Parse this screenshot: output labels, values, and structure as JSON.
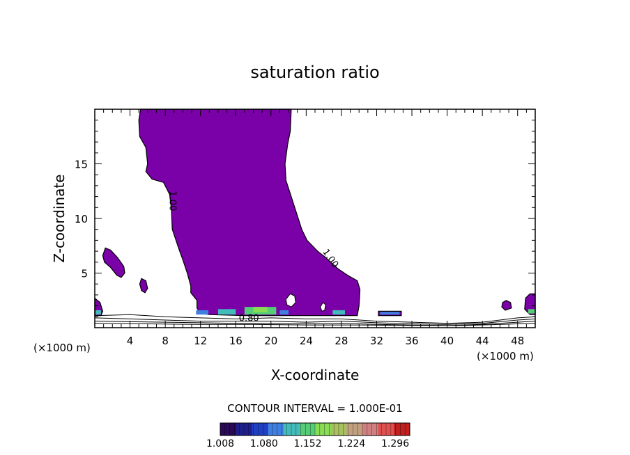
{
  "chart_data": {
    "type": "heatmap",
    "title": "saturation ratio",
    "xlabel": "X-coordinate",
    "ylabel": "Z-coordinate",
    "x_unit_left": "(×1000 m)",
    "x_unit_right": "(×1000 m)",
    "xlim": [
      0,
      50
    ],
    "ylim": [
      0,
      20
    ],
    "x_ticks": [
      4,
      8,
      12,
      16,
      20,
      24,
      28,
      32,
      36,
      40,
      44,
      48
    ],
    "y_ticks": [
      5,
      10,
      15
    ],
    "contour_labels": [
      {
        "text": "1.00",
        "x": 8.5,
        "y": 11.6,
        "rotate": 90
      },
      {
        "text": "1.00",
        "x": 26.5,
        "y": 6.2,
        "rotate": 55
      },
      {
        "text": "0.80",
        "x": 17.5,
        "y": 0.6,
        "rotate": 0
      }
    ],
    "contour_interval_text": "CONTOUR INTERVAL = 1.000E-01",
    "colorbar": {
      "min": 1.008,
      "max": 1.32,
      "tick_labels": [
        "1.008",
        "1.080",
        "1.152",
        "1.224",
        "1.296"
      ],
      "colors": [
        "#2a0a55",
        "#1f1f8c",
        "#1f3fc4",
        "#3f7fdf",
        "#44bbbb",
        "#55cc77",
        "#88dd55",
        "#a8c060",
        "#c0a080",
        "#d08080",
        "#e05050",
        "#c02020"
      ]
    },
    "fill_color": "#7a00a8",
    "regions": [
      {
        "name": "main-plume",
        "points": [
          [
            5.2,
            20
          ],
          [
            5.0,
            19
          ],
          [
            5.1,
            17.5
          ],
          [
            5.8,
            16.5
          ],
          [
            6.0,
            15
          ],
          [
            5.8,
            14.3
          ],
          [
            6.5,
            13.6
          ],
          [
            7.8,
            13.3
          ],
          [
            8.5,
            12.2
          ],
          [
            8.7,
            10.8
          ],
          [
            8.8,
            9
          ],
          [
            9.6,
            7.1
          ],
          [
            10,
            6.2
          ],
          [
            10.5,
            5
          ],
          [
            10.9,
            3.8
          ],
          [
            10.9,
            3.2
          ],
          [
            11.2,
            2.9
          ],
          [
            11.6,
            2.5
          ],
          [
            11.6,
            1.8
          ],
          [
            12,
            1.3
          ],
          [
            13,
            1.2
          ],
          [
            17,
            1.1
          ],
          [
            23,
            1.1
          ],
          [
            27,
            1.1
          ],
          [
            29.8,
            1.1
          ],
          [
            30,
            2
          ],
          [
            30.1,
            3.5
          ],
          [
            29.8,
            4.3
          ],
          [
            28.7,
            4.8
          ],
          [
            27.6,
            5.4
          ],
          [
            26.1,
            6.5
          ],
          [
            25.3,
            7
          ],
          [
            24.1,
            8
          ],
          [
            23.5,
            9
          ],
          [
            22.3,
            12
          ],
          [
            21.7,
            13.5
          ],
          [
            21.6,
            15
          ],
          [
            21.9,
            16.8
          ],
          [
            22.2,
            18
          ],
          [
            22.3,
            20
          ]
        ]
      },
      {
        "name": "left-blob",
        "points": [
          [
            0.9,
            6.6
          ],
          [
            1.2,
            7.3
          ],
          [
            1.8,
            7.1
          ],
          [
            2.6,
            6.4
          ],
          [
            3.3,
            5.6
          ],
          [
            3.4,
            5.0
          ],
          [
            3.0,
            4.6
          ],
          [
            2.5,
            4.8
          ],
          [
            1.8,
            5.5
          ],
          [
            1.1,
            6.0
          ]
        ]
      },
      {
        "name": "small-blob",
        "points": [
          [
            5.1,
            4.0
          ],
          [
            5.3,
            4.5
          ],
          [
            5.8,
            4.3
          ],
          [
            6.0,
            3.6
          ],
          [
            5.7,
            3.2
          ],
          [
            5.3,
            3.4
          ]
        ]
      },
      {
        "name": "right-edge-blob",
        "points": [
          [
            48.9,
            2.7
          ],
          [
            49.4,
            3.1
          ],
          [
            50,
            3.1
          ],
          [
            50,
            1.2
          ],
          [
            49.4,
            1.2
          ],
          [
            48.8,
            1.7
          ]
        ]
      },
      {
        "name": "right-small-blob",
        "points": [
          [
            46.3,
            2.3
          ],
          [
            46.7,
            2.5
          ],
          [
            47.2,
            2.3
          ],
          [
            47.3,
            1.8
          ],
          [
            46.6,
            1.6
          ],
          [
            46.2,
            1.9
          ]
        ]
      },
      {
        "name": "left-edge-blob",
        "points": [
          [
            0,
            2.7
          ],
          [
            0.6,
            2.3
          ],
          [
            0.9,
            1.5
          ],
          [
            0.7,
            1.1
          ],
          [
            0,
            1.1
          ]
        ]
      },
      {
        "name": "band-32",
        "points": [
          [
            32.2,
            1.5
          ],
          [
            34.8,
            1.5
          ],
          [
            34.8,
            1.1
          ],
          [
            32.2,
            1.1
          ]
        ]
      }
    ],
    "holes": [
      {
        "name": "hole-22",
        "points": [
          [
            21.7,
            2.6
          ],
          [
            22.2,
            3.1
          ],
          [
            22.7,
            2.9
          ],
          [
            22.8,
            2.3
          ],
          [
            22.3,
            1.9
          ],
          [
            21.8,
            2.1
          ]
        ]
      },
      {
        "name": "hole-26",
        "points": [
          [
            25.6,
            1.9
          ],
          [
            25.9,
            2.3
          ],
          [
            26.2,
            2.1
          ],
          [
            26.1,
            1.6
          ],
          [
            25.8,
            1.5
          ]
        ]
      }
    ],
    "color_patches": [
      {
        "x": 11.5,
        "y": 1.2,
        "w": 1.4,
        "h": 0.4,
        "color": "#3f7fdf"
      },
      {
        "x": 14.0,
        "y": 1.2,
        "w": 2.0,
        "h": 0.5,
        "color": "#44bbbb"
      },
      {
        "x": 17.0,
        "y": 1.2,
        "w": 3.6,
        "h": 0.7,
        "color": "#55cc77"
      },
      {
        "x": 18.0,
        "y": 1.4,
        "w": 1.6,
        "h": 0.5,
        "color": "#88dd55"
      },
      {
        "x": 21.0,
        "y": 1.2,
        "w": 1.0,
        "h": 0.4,
        "color": "#3f7fdf"
      },
      {
        "x": 27.0,
        "y": 1.2,
        "w": 1.4,
        "h": 0.4,
        "color": "#44bbbb"
      },
      {
        "x": 32.4,
        "y": 1.2,
        "w": 2.2,
        "h": 0.25,
        "color": "#3f7fdf"
      },
      {
        "x": 49.2,
        "y": 1.3,
        "w": 0.8,
        "h": 0.4,
        "color": "#55cc77"
      },
      {
        "x": 0.1,
        "y": 1.2,
        "w": 0.6,
        "h": 0.4,
        "color": "#44bbbb"
      }
    ],
    "ground_contours": [
      {
        "points": [
          [
            0,
            1.1
          ],
          [
            4,
            1.2
          ],
          [
            8,
            1.0
          ],
          [
            12,
            0.9
          ],
          [
            16,
            0.8
          ],
          [
            20,
            0.9
          ],
          [
            24,
            0.8
          ],
          [
            28,
            0.8
          ],
          [
            32,
            0.6
          ],
          [
            36,
            0.5
          ],
          [
            40,
            0.4
          ],
          [
            44,
            0.5
          ],
          [
            48,
            0.9
          ],
          [
            50,
            1.0
          ]
        ]
      },
      {
        "points": [
          [
            0,
            0.9
          ],
          [
            4,
            0.8
          ],
          [
            8,
            0.7
          ],
          [
            12,
            0.6
          ],
          [
            16,
            0.6
          ],
          [
            20,
            0.6
          ],
          [
            24,
            0.5
          ],
          [
            28,
            0.6
          ],
          [
            32,
            0.45
          ],
          [
            36,
            0.35
          ],
          [
            40,
            0.3
          ],
          [
            44,
            0.4
          ],
          [
            48,
            0.7
          ],
          [
            50,
            0.8
          ]
        ]
      },
      {
        "points": [
          [
            0,
            0.6
          ],
          [
            4,
            0.55
          ],
          [
            8,
            0.5
          ],
          [
            12,
            0.45
          ],
          [
            16,
            0.4
          ],
          [
            20,
            0.4
          ],
          [
            24,
            0.35
          ],
          [
            28,
            0.4
          ],
          [
            32,
            0.3
          ],
          [
            36,
            0.25
          ],
          [
            40,
            0.2
          ],
          [
            44,
            0.3
          ],
          [
            48,
            0.5
          ],
          [
            50,
            0.6
          ]
        ]
      },
      {
        "points": [
          [
            0,
            0.4
          ],
          [
            6,
            0.35
          ],
          [
            12,
            0.3
          ],
          [
            18,
            0.3
          ],
          [
            24,
            0.25
          ],
          [
            30,
            0.25
          ],
          [
            36,
            0.2
          ],
          [
            42,
            0.2
          ],
          [
            48,
            0.35
          ],
          [
            50,
            0.4
          ]
        ]
      }
    ]
  }
}
